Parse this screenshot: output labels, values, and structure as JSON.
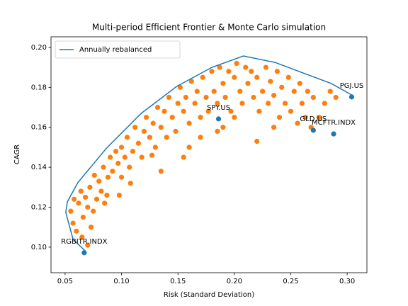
{
  "chart_data": {
    "type": "scatter",
    "title": "Multi-period Efficient Frontier & Monte Carlo simulation",
    "xlabel": "Risk (Standard Deviation)",
    "ylabel": "CAGR",
    "xlim": [
      0.0375,
      0.3175
    ],
    "ylim": [
      0.0872,
      0.2053
    ],
    "xticks": [
      0.05,
      {
        "value": 0.1,
        "label": "0.10"
      },
      0.15,
      {
        "value": 0.2,
        "label": "0.20"
      },
      0.25,
      {
        "value": 0.3,
        "label": "0.30"
      }
    ],
    "yticks": [
      {
        "value": 0.1,
        "label": "0.10"
      },
      0.12,
      0.14,
      0.16,
      0.18,
      {
        "value": 0.2,
        "label": "0.20"
      }
    ],
    "legend": "upper left",
    "lines": [
      {
        "name": "Annually rebalanced",
        "color": "#1f77b4",
        "x": [
          0.068,
          0.057,
          0.0506,
          0.052,
          0.0613,
          0.0863,
          0.1175,
          0.149,
          0.18,
          0.208,
          0.236,
          0.261,
          0.286,
          0.305
        ],
        "values": [
          0.098,
          0.104,
          0.1174,
          0.1227,
          0.1323,
          0.1493,
          0.167,
          0.1805,
          0.19,
          0.1957,
          0.1925,
          0.1872,
          0.1819,
          0.1759
        ]
      }
    ],
    "simulations": {
      "color": "#ff7f0e",
      "x": [
        0.055,
        0.057,
        0.06,
        0.062,
        0.065,
        0.066,
        0.068,
        0.07,
        0.07,
        0.058,
        0.064,
        0.072,
        0.075,
        0.076,
        0.078,
        0.08,
        0.082,
        0.084,
        0.085,
        0.088,
        0.09,
        0.073,
        0.087,
        0.092,
        0.095,
        0.097,
        0.1,
        0.1,
        0.103,
        0.105,
        0.107,
        0.11,
        0.112,
        0.115,
        0.118,
        0.12,
        0.108,
        0.098,
        0.122,
        0.125,
        0.128,
        0.13,
        0.132,
        0.135,
        0.138,
        0.14,
        0.142,
        0.145,
        0.148,
        0.15,
        0.135,
        0.127,
        0.152,
        0.155,
        0.157,
        0.16,
        0.162,
        0.165,
        0.167,
        0.17,
        0.172,
        0.175,
        0.177,
        0.18,
        0.16,
        0.17,
        0.155,
        0.182,
        0.185,
        0.187,
        0.19,
        0.192,
        0.195,
        0.197,
        0.2,
        0.202,
        0.205,
        0.207,
        0.21,
        0.19,
        0.2,
        0.185,
        0.212,
        0.215,
        0.217,
        0.22,
        0.222,
        0.225,
        0.228,
        0.23,
        0.232,
        0.235,
        0.238,
        0.24,
        0.22,
        0.235,
        0.242,
        0.245,
        0.248,
        0.25,
        0.253,
        0.256,
        0.258,
        0.26,
        0.263,
        0.265,
        0.268,
        0.27,
        0.275,
        0.28,
        0.285,
        0.29
      ],
      "values": [
        0.118,
        0.112,
        0.108,
        0.122,
        0.105,
        0.115,
        0.125,
        0.101,
        0.12,
        0.124,
        0.128,
        0.13,
        0.118,
        0.136,
        0.124,
        0.133,
        0.128,
        0.14,
        0.122,
        0.135,
        0.145,
        0.11,
        0.126,
        0.138,
        0.148,
        0.142,
        0.135,
        0.15,
        0.145,
        0.155,
        0.14,
        0.148,
        0.16,
        0.152,
        0.145,
        0.158,
        0.132,
        0.126,
        0.165,
        0.155,
        0.162,
        0.15,
        0.17,
        0.16,
        0.168,
        0.155,
        0.175,
        0.165,
        0.158,
        0.172,
        0.138,
        0.146,
        0.18,
        0.168,
        0.175,
        0.162,
        0.183,
        0.172,
        0.178,
        0.165,
        0.185,
        0.175,
        0.168,
        0.188,
        0.15,
        0.155,
        0.145,
        0.178,
        0.172,
        0.19,
        0.182,
        0.175,
        0.188,
        0.168,
        0.185,
        0.192,
        0.178,
        0.172,
        0.19,
        0.16,
        0.165,
        0.158,
        0.182,
        0.188,
        0.175,
        0.185,
        0.168,
        0.178,
        0.19,
        0.172,
        0.183,
        0.176,
        0.188,
        0.165,
        0.153,
        0.16,
        0.18,
        0.172,
        0.185,
        0.168,
        0.178,
        0.162,
        0.182,
        0.172,
        0.165,
        0.178,
        0.16,
        0.175,
        0.165,
        0.172,
        0.178,
        0.175
      ]
    },
    "assets": {
      "color": "#1f77b4",
      "labels": [
        "RGBITR.INDX",
        "SPY.US",
        "GLD.US",
        "MCFTR.INDX",
        "PGJ.US"
      ],
      "x": [
        0.0669,
        0.186,
        0.27,
        0.288,
        0.304
      ],
      "values": [
        0.0972,
        0.1642,
        0.1585,
        0.1567,
        0.1752
      ]
    }
  }
}
